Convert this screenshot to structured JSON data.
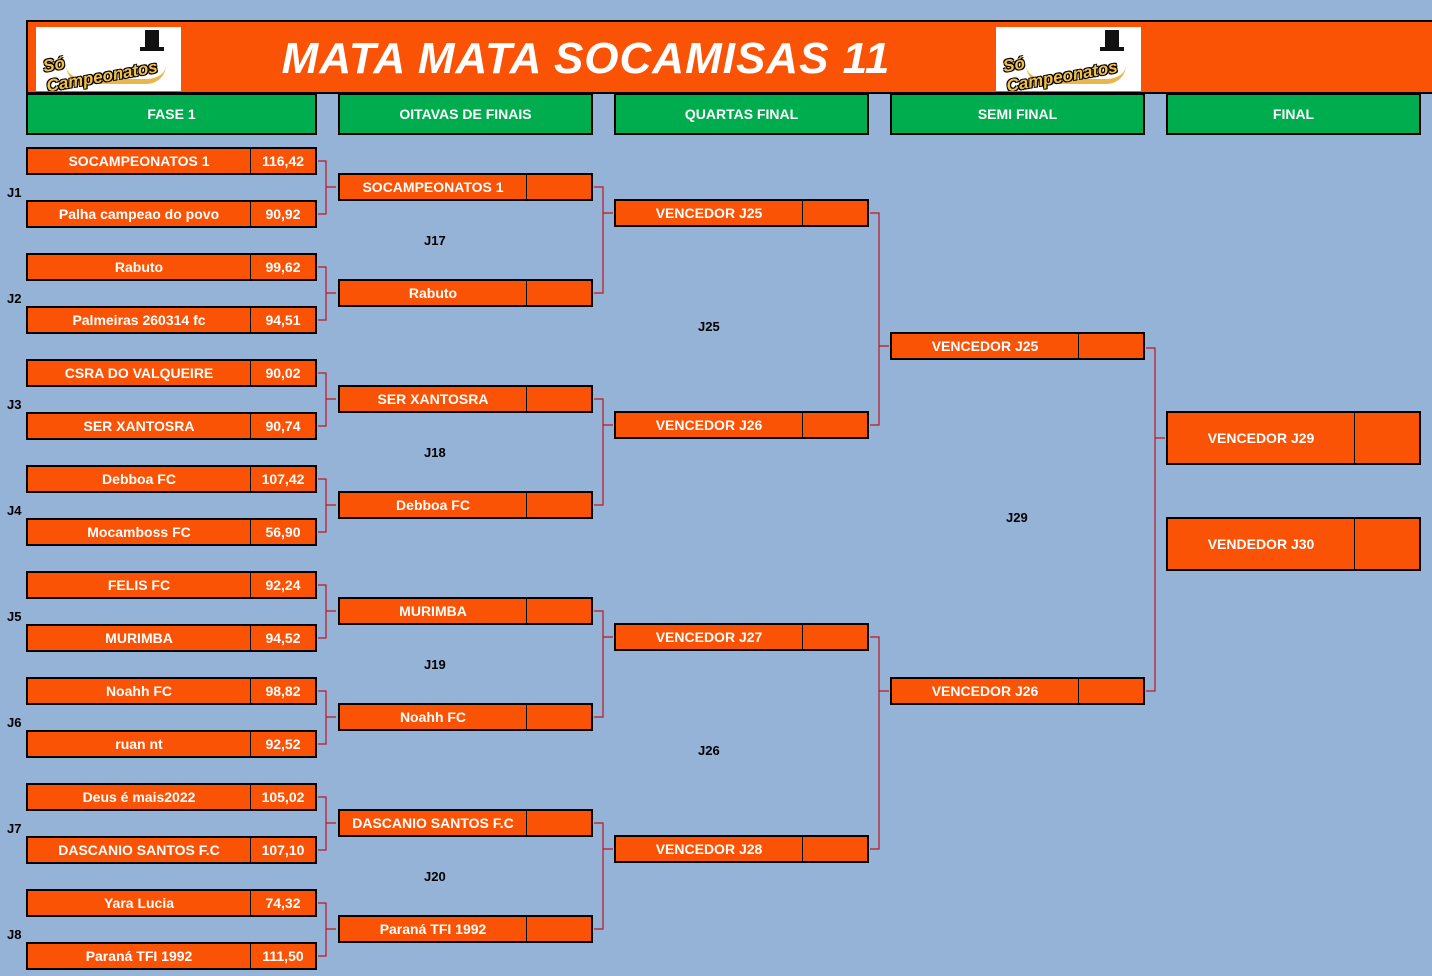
{
  "header": {
    "title": "MATA MATA SOCAMISAS 11",
    "logo_text": "Só Campeonatos"
  },
  "stages": [
    "FASE 1",
    "OITAVAS DE FINAIS",
    "QUARTAS FINAL",
    "SEMI FINAL",
    "FINAL"
  ],
  "fase1": {
    "matches": [
      {
        "label": "J1",
        "teams": [
          {
            "name": "SOCAMPEONATOS 1",
            "score": "116,42"
          },
          {
            "name": "Palha campeao do povo",
            "score": "90,92"
          }
        ]
      },
      {
        "label": "J2",
        "teams": [
          {
            "name": "Rabuto",
            "score": "99,62"
          },
          {
            "name": "Palmeiras 260314 fc",
            "score": "94,51"
          }
        ]
      },
      {
        "label": "J3",
        "teams": [
          {
            "name": "CSRA DO VALQUEIRE",
            "score": "90,02"
          },
          {
            "name": "SER XANTOSRA",
            "score": "90,74"
          }
        ]
      },
      {
        "label": "J4",
        "teams": [
          {
            "name": "Debboa FC",
            "score": "107,42"
          },
          {
            "name": "Mocamboss FC",
            "score": "56,90"
          }
        ]
      },
      {
        "label": "J5",
        "teams": [
          {
            "name": "FELIS FC",
            "score": "92,24"
          },
          {
            "name": "MURIMBA",
            "score": "94,52"
          }
        ]
      },
      {
        "label": "J6",
        "teams": [
          {
            "name": "Noahh FC",
            "score": "98,82"
          },
          {
            "name": "ruan nt",
            "score": "92,52"
          }
        ]
      },
      {
        "label": "J7",
        "teams": [
          {
            "name": "Deus é  mais2022",
            "score": "105,02"
          },
          {
            "name": "DASCANIO SANTOS F.C",
            "score": "107,10"
          }
        ]
      },
      {
        "label": "J8",
        "teams": [
          {
            "name": "Yara Lucia",
            "score": "74,32"
          },
          {
            "name": "Paraná TFI 1992",
            "score": "111,50"
          }
        ]
      }
    ]
  },
  "oitavas": {
    "labels": [
      "J17",
      "J18",
      "J19",
      "J20"
    ],
    "teams": [
      "SOCAMPEONATOS 1",
      "Rabuto",
      "SER XANTOSRA",
      "Debboa FC",
      "MURIMBA",
      "Noahh FC",
      "DASCANIO SANTOS F.C",
      "Paraná TFI 1992"
    ]
  },
  "quartas": {
    "labels": [
      "J25",
      "J26"
    ],
    "teams": [
      "VENCEDOR J25",
      "VENCEDOR J26",
      "VENCEDOR J27",
      "VENCEDOR J28"
    ]
  },
  "semi": {
    "labels": [
      "J29"
    ],
    "teams": [
      "VENCEDOR J25",
      "VENCEDOR J26"
    ]
  },
  "final": {
    "teams": [
      "VENCEDOR J29",
      "VENDEDOR J30"
    ]
  },
  "colors": {
    "box": "#fa5305",
    "stage": "#00ad4e",
    "background": "#95b3d7",
    "connector": "#c0161e"
  }
}
